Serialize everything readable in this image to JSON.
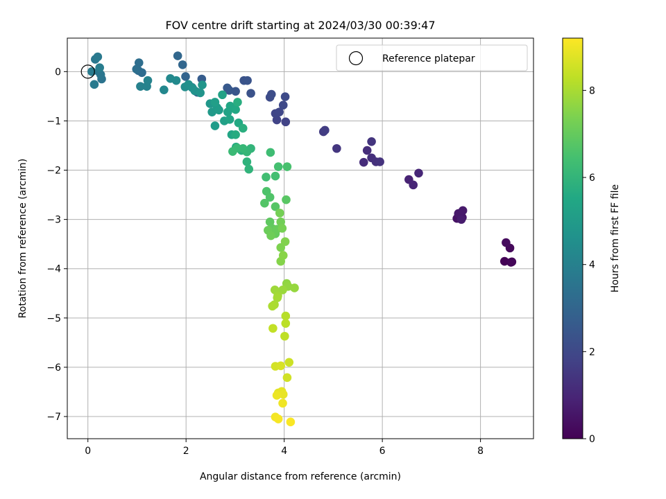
{
  "chart_data": {
    "type": "scatter",
    "title": "FOV centre drift starting at 2024/03/30 00:39:47",
    "xlabel": "Angular distance from reference (arcmin)",
    "ylabel": "Rotation from reference (arcmin)",
    "xlim": [
      -0.42,
      9.08
    ],
    "ylim": [
      -7.45,
      0.68
    ],
    "xticks": [
      0,
      2,
      4,
      6,
      8
    ],
    "yticks": [
      0,
      -1,
      -2,
      -3,
      -4,
      -5,
      -6,
      -7
    ],
    "grid": true,
    "legend": {
      "placement": "top-right",
      "entries": [
        "Reference platepar"
      ]
    },
    "reference_point": {
      "x": 0,
      "y": 0
    },
    "colorbar": {
      "label": "Hours from first FF file",
      "colormap": "viridis",
      "range": [
        0,
        9.2
      ],
      "ticks": [
        0,
        2,
        4,
        6,
        8
      ]
    },
    "series": [
      {
        "points": [
          [
            8.49,
            -3.85,
            0.05
          ],
          [
            8.62,
            -3.87,
            0.1
          ],
          [
            8.64,
            -3.86,
            0.15
          ],
          [
            8.6,
            -3.58,
            0.2
          ],
          [
            8.52,
            -3.47,
            0.25
          ],
          [
            7.52,
            -2.98,
            0.45
          ],
          [
            7.58,
            -2.9,
            0.5
          ],
          [
            7.63,
            -2.96,
            0.55
          ],
          [
            7.55,
            -2.88,
            0.6
          ],
          [
            7.64,
            -2.82,
            0.65
          ],
          [
            7.61,
            -3.0,
            0.7
          ],
          [
            6.54,
            -2.19,
            0.9
          ],
          [
            6.63,
            -2.3,
            0.95
          ],
          [
            6.74,
            -2.06,
            1.0
          ],
          [
            5.62,
            -1.84,
            1.15
          ],
          [
            5.69,
            -1.6,
            1.2
          ],
          [
            5.78,
            -1.75,
            1.25
          ],
          [
            5.87,
            -1.83,
            1.3
          ],
          [
            5.95,
            -1.83,
            1.35
          ],
          [
            5.78,
            -1.42,
            1.4
          ],
          [
            5.07,
            -1.56,
            1.45
          ],
          [
            4.8,
            -1.22,
            1.6
          ],
          [
            4.83,
            -1.19,
            1.65
          ],
          [
            4.03,
            -1.02,
            1.8
          ],
          [
            3.85,
            -0.98,
            1.85
          ],
          [
            3.82,
            -0.85,
            1.9
          ],
          [
            3.9,
            -0.82,
            1.95
          ],
          [
            3.98,
            -0.68,
            2.0
          ],
          [
            4.02,
            -0.51,
            2.05
          ],
          [
            3.71,
            -0.52,
            2.1
          ],
          [
            3.74,
            -0.46,
            2.15
          ],
          [
            3.32,
            -0.44,
            2.3
          ],
          [
            3.18,
            -0.18,
            2.35
          ],
          [
            3.25,
            -0.18,
            2.4
          ],
          [
            3.01,
            -0.4,
            2.45
          ],
          [
            2.88,
            -0.38,
            2.5
          ],
          [
            2.84,
            -0.33,
            2.55
          ],
          [
            2.32,
            -0.15,
            2.7
          ],
          [
            2.12,
            -0.32,
            2.75
          ],
          [
            2.23,
            -0.42,
            2.8
          ],
          [
            1.99,
            -0.1,
            2.95
          ],
          [
            1.93,
            0.14,
            3.0
          ],
          [
            1.83,
            0.32,
            3.05
          ],
          [
            1.03,
            0.02,
            3.2
          ],
          [
            1.1,
            -0.02,
            3.25
          ],
          [
            1.04,
            0.18,
            3.3
          ],
          [
            0.99,
            0.05,
            3.35
          ],
          [
            0.28,
            -0.15,
            3.5
          ],
          [
            0.22,
            0.0,
            3.55
          ],
          [
            0.26,
            -0.06,
            3.6
          ],
          [
            0.15,
            0.25,
            3.65
          ],
          [
            0.2,
            0.3,
            3.7
          ],
          [
            0.13,
            -0.26,
            3.75
          ],
          [
            0.08,
            0.0,
            3.8
          ],
          [
            0.24,
            0.08,
            3.85
          ],
          [
            1.07,
            -0.3,
            4.0
          ],
          [
            1.2,
            -0.3,
            4.05
          ],
          [
            1.22,
            -0.18,
            4.1
          ],
          [
            1.55,
            -0.37,
            4.25
          ],
          [
            1.68,
            -0.14,
            4.3
          ],
          [
            1.8,
            -0.18,
            4.35
          ],
          [
            1.98,
            -0.31,
            4.5
          ],
          [
            2.05,
            -0.26,
            4.55
          ],
          [
            2.13,
            -0.33,
            4.6
          ],
          [
            2.18,
            -0.39,
            4.65
          ],
          [
            2.29,
            -0.43,
            4.7
          ],
          [
            2.33,
            -0.27,
            4.75
          ],
          [
            2.49,
            -0.65,
            4.85
          ],
          [
            2.53,
            -0.82,
            4.9
          ],
          [
            2.63,
            -0.73,
            4.95
          ],
          [
            2.59,
            -1.1,
            5.0
          ],
          [
            2.67,
            -0.78,
            5.05
          ],
          [
            2.59,
            -0.62,
            5.1
          ],
          [
            2.78,
            -1.0,
            5.2
          ],
          [
            2.74,
            -0.47,
            5.25
          ],
          [
            2.85,
            -0.82,
            5.3
          ],
          [
            2.89,
            -0.97,
            5.35
          ],
          [
            2.93,
            -1.28,
            5.4
          ],
          [
            2.9,
            -0.7,
            5.45
          ],
          [
            3.01,
            -0.77,
            5.5
          ],
          [
            3.07,
            -1.04,
            5.55
          ],
          [
            3.02,
            -1.53,
            5.6
          ],
          [
            3.01,
            -1.28,
            5.65
          ],
          [
            3.05,
            -0.62,
            5.7
          ],
          [
            3.16,
            -1.15,
            5.75
          ],
          [
            3.13,
            -1.6,
            5.8
          ],
          [
            3.24,
            -1.83,
            5.9
          ],
          [
            3.28,
            -1.98,
            5.95
          ],
          [
            3.32,
            -1.56,
            6.0
          ],
          [
            3.24,
            -1.63,
            6.05
          ],
          [
            3.16,
            -1.56,
            6.1
          ],
          [
            3.04,
            -1.55,
            6.15
          ],
          [
            2.95,
            -1.62,
            6.2
          ],
          [
            3.72,
            -1.64,
            6.3
          ],
          [
            3.63,
            -2.14,
            6.35
          ],
          [
            3.82,
            -2.12,
            6.4
          ],
          [
            3.88,
            -1.93,
            6.45
          ],
          [
            4.06,
            -1.93,
            6.5
          ],
          [
            3.64,
            -2.43,
            6.6
          ],
          [
            3.71,
            -2.55,
            6.65
          ],
          [
            3.6,
            -2.67,
            6.7
          ],
          [
            3.82,
            -2.74,
            6.75
          ],
          [
            4.04,
            -2.6,
            6.8
          ],
          [
            3.71,
            -3.05,
            6.9
          ],
          [
            3.75,
            -3.18,
            6.95
          ],
          [
            3.82,
            -3.29,
            7.0
          ],
          [
            3.85,
            -3.2,
            7.05
          ],
          [
            3.67,
            -3.22,
            7.1
          ],
          [
            3.73,
            -3.33,
            7.15
          ],
          [
            3.93,
            -3.05,
            7.2
          ],
          [
            3.91,
            -2.87,
            7.25
          ],
          [
            3.96,
            -3.18,
            7.3
          ],
          [
            3.93,
            -3.57,
            7.4
          ],
          [
            4.02,
            -3.45,
            7.45
          ],
          [
            3.93,
            -3.85,
            7.5
          ],
          [
            3.98,
            -3.73,
            7.55
          ],
          [
            4.05,
            -4.3,
            7.65
          ],
          [
            4.08,
            -4.36,
            7.7
          ],
          [
            4.21,
            -4.39,
            7.75
          ],
          [
            3.97,
            -4.43,
            7.8
          ],
          [
            3.81,
            -4.43,
            7.85
          ],
          [
            3.87,
            -4.55,
            7.9
          ],
          [
            3.86,
            -4.59,
            7.95
          ],
          [
            3.8,
            -4.73,
            8.0
          ],
          [
            3.76,
            -4.76,
            8.05
          ],
          [
            4.03,
            -4.96,
            8.2
          ],
          [
            4.03,
            -5.11,
            8.25
          ],
          [
            4.01,
            -5.37,
            8.3
          ],
          [
            3.77,
            -5.21,
            8.35
          ],
          [
            4.1,
            -5.9,
            8.5
          ],
          [
            4.06,
            -6.21,
            8.55
          ],
          [
            3.82,
            -5.98,
            8.6
          ],
          [
            3.93,
            -5.97,
            8.65
          ],
          [
            3.88,
            -6.52,
            8.8
          ],
          [
            3.95,
            -6.49,
            8.85
          ],
          [
            3.98,
            -6.55,
            8.9
          ],
          [
            3.85,
            -6.57,
            8.95
          ],
          [
            3.97,
            -6.73,
            9.0
          ],
          [
            3.82,
            -7.01,
            9.05
          ],
          [
            3.88,
            -7.05,
            9.1
          ],
          [
            4.13,
            -7.11,
            9.15
          ]
        ]
      }
    ]
  }
}
